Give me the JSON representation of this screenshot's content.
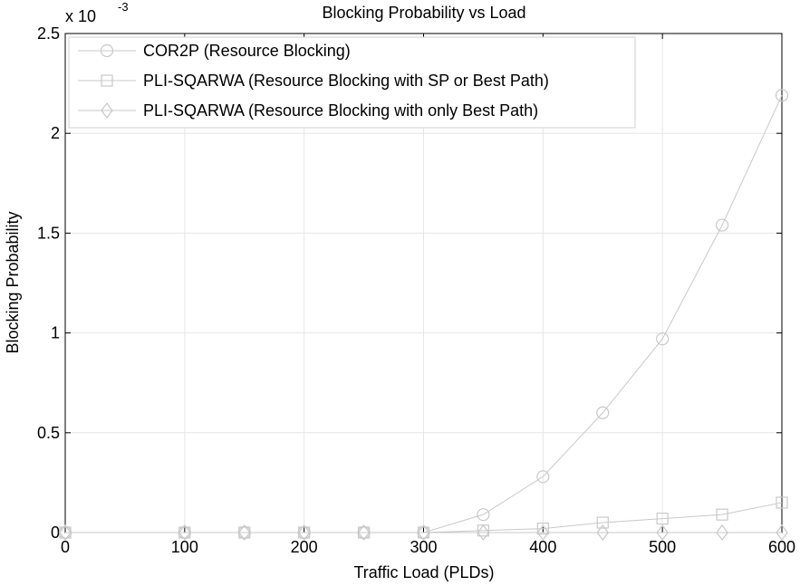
{
  "chart_data": {
    "type": "line",
    "title": "Blocking Probability vs Load",
    "xlabel": "Traffic Load (PLDs)",
    "ylabel": "Blocking Probability",
    "y_exponent_base": "x 10",
    "y_exponent_power": "-3",
    "xlim": [
      0,
      600
    ],
    "ylim": [
      0,
      2.5
    ],
    "x_ticks": [
      "0",
      "100",
      "200",
      "300",
      "400",
      "500",
      "600"
    ],
    "y_ticks": [
      "0",
      "0.5",
      "1",
      "1.5",
      "2",
      "2.5"
    ],
    "grid": true,
    "legend_position": "top-left",
    "colors": {
      "series": "#c8c8c8",
      "grid": "#e6e6e6",
      "axis": "#000000"
    },
    "x": [
      0,
      100,
      150,
      200,
      250,
      300,
      350,
      400,
      450,
      500,
      550,
      600
    ],
    "series": [
      {
        "name": "COR2P (Resource Blocking)",
        "marker": "circle",
        "values": [
          0,
          0,
          0,
          0,
          0,
          0,
          0.09,
          0.28,
          0.6,
          0.97,
          1.54,
          2.19
        ]
      },
      {
        "name": "PLI-SQARWA (Resource Blocking with SP or Best Path)",
        "marker": "square",
        "values": [
          0,
          0,
          0,
          0,
          0,
          0,
          0.01,
          0.02,
          0.05,
          0.07,
          0.09,
          0.15
        ]
      },
      {
        "name": "PLI-SQARWA (Resource Blocking with only Best Path)",
        "marker": "diamond",
        "values": [
          0,
          0,
          0,
          0,
          0,
          0,
          0,
          0,
          0,
          0,
          0,
          0
        ]
      }
    ]
  }
}
